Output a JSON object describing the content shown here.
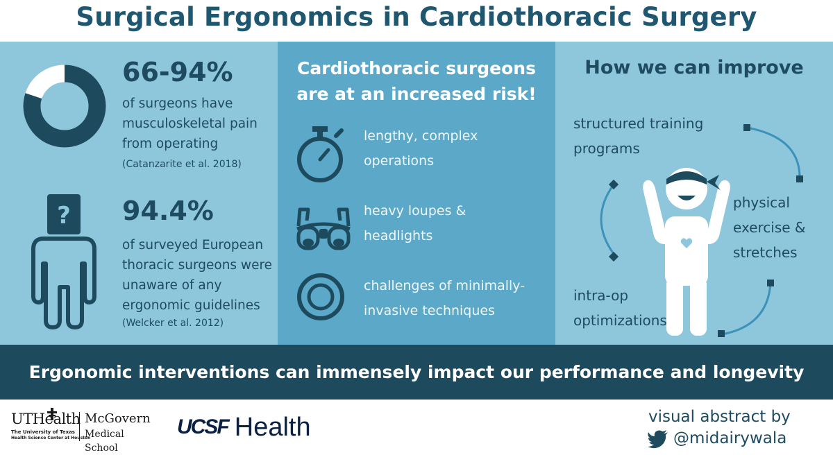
{
  "title": "Surgical Ergonomics in Cardiothoracic Surgery",
  "left_panel": {
    "stat1": {
      "value": "66-94%",
      "fraction_shown": 0.8,
      "lines": [
        "of surgeons have",
        "musculoskeletal pain",
        "from operating"
      ],
      "citation": "(Catanzarite et al. 2018)"
    },
    "stat2": {
      "value": "94.4%",
      "icon_glyph": "?",
      "lines": [
        "of surveyed European",
        "thoracic surgeons were",
        "unaware of any",
        "ergonomic guidelines"
      ],
      "citation": "(Welcker et al. 2012)"
    }
  },
  "middle_panel": {
    "heading_lines": [
      "Cardiothoracic surgeons",
      "are at an increased risk!"
    ],
    "items": [
      {
        "icon": "stopwatch-icon",
        "lines": [
          "lengthy, complex",
          "operations"
        ]
      },
      {
        "icon": "loupes-icon",
        "lines": [
          "heavy loupes &",
          "headlights"
        ]
      },
      {
        "icon": "scope-icon",
        "lines": [
          "challenges of minimally-",
          "invasive techniques"
        ]
      }
    ]
  },
  "right_panel": {
    "heading": "How we can improve",
    "items": {
      "training": [
        "structured training",
        "programs"
      ],
      "exercise": [
        "physical",
        "exercise &",
        "stretches"
      ],
      "intraop": [
        "intra-op",
        "optimizations"
      ]
    }
  },
  "banner": "Ergonomic interventions can immensely impact our performance and longevity",
  "footer": {
    "uthealth": {
      "name": "UTHealth",
      "sub1": "The University of Texas",
      "sub2": "Health Science Center at Houston",
      "school1": "McGovern",
      "school2": "Medical School"
    },
    "ucsf": {
      "mark": "UCSF",
      "word": "Health"
    },
    "credit": "visual abstract by",
    "handle": "@midairywala"
  },
  "colors": {
    "panel_light": "#8ec7dc",
    "panel_mid": "#5ba8c8",
    "dark": "#1e4a5e",
    "white": "#ffffff"
  }
}
